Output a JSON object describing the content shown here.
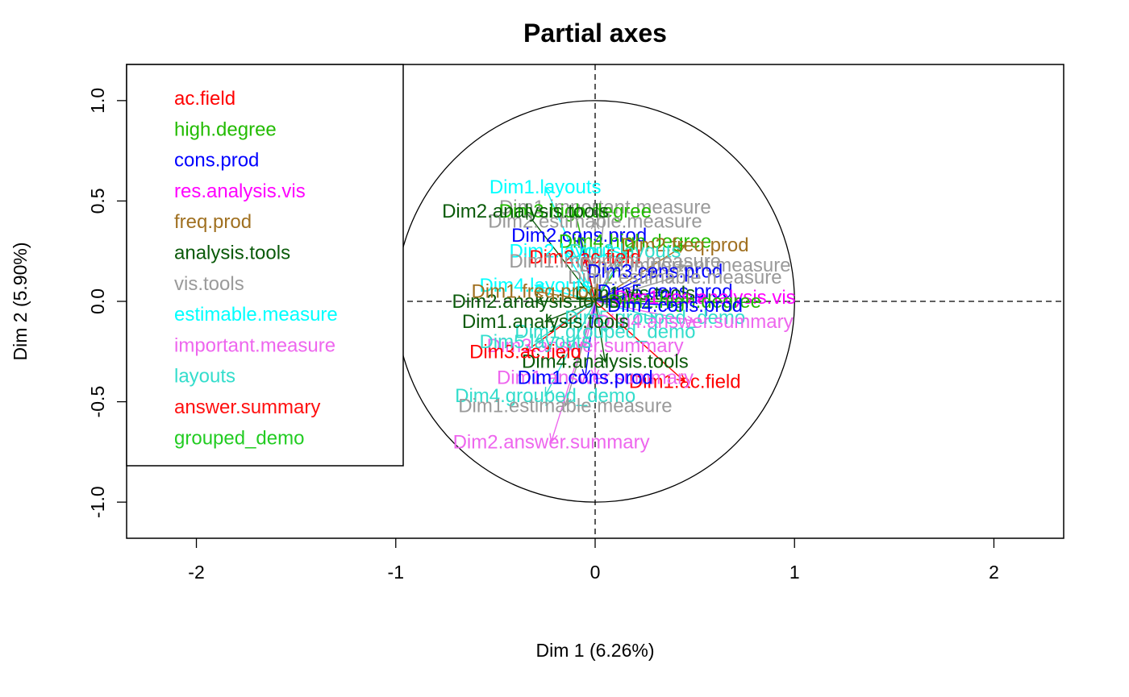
{
  "chart_data": {
    "type": "scatter",
    "title": "Partial axes",
    "xlabel": "Dim 1 (6.26%)",
    "ylabel": "Dim 2 (5.90%)",
    "xlim": [
      -2.35,
      2.35
    ],
    "ylim": [
      -1.18,
      1.18
    ],
    "x_ticks": [
      -2,
      -1,
      0,
      1,
      2
    ],
    "y_ticks": [
      -1.0,
      -0.5,
      0.0,
      0.5,
      1.0
    ],
    "x_tick_labels": [
      "-2",
      "-1",
      "0",
      "1",
      "2"
    ],
    "y_tick_labels": [
      "-1.0",
      "-0.5",
      "0.0",
      "0.5",
      "1.0"
    ],
    "grid": false,
    "unit_circle": true,
    "reference_lines": "dashed lines at x=0 and y=0",
    "legend_position": "top-left",
    "groups": [
      {
        "name": "ac.field",
        "color": "#FF0000"
      },
      {
        "name": "high.degree",
        "color": "#22BB00"
      },
      {
        "name": "cons.prod",
        "color": "#0000FF"
      },
      {
        "name": "res.analysis.vis",
        "color": "#FF00FF"
      },
      {
        "name": "freq.prod",
        "color": "#A07020"
      },
      {
        "name": "analysis.tools",
        "color": "#0A5A0A"
      },
      {
        "name": "vis.tools",
        "color": "#9A9A9A"
      },
      {
        "name": "estimable.measure",
        "color": "#00FFFF"
      },
      {
        "name": "important.measure",
        "color": "#EE66EE"
      },
      {
        "name": "layouts",
        "color": "#33DDCC"
      },
      {
        "name": "answer.summary",
        "color": "#FF1010"
      },
      {
        "name": "grouped_demo",
        "color": "#22CC22"
      }
    ],
    "points": [
      {
        "label": "Dim1.layouts",
        "group": "estimable.measure",
        "x": -0.25,
        "y": 0.57
      },
      {
        "label": "Dim1.important.measure",
        "group": "vis.tools",
        "x": 0.05,
        "y": 0.47
      },
      {
        "label": "Dim3.high.degree",
        "group": "high.degree",
        "x": -0.1,
        "y": 0.45
      },
      {
        "label": "Dim2.estimable.measure",
        "group": "vis.tools",
        "x": 0.0,
        "y": 0.4
      },
      {
        "label": "Dim2.cons.prod",
        "group": "cons.prod",
        "x": -0.08,
        "y": 0.33
      },
      {
        "label": "Dim4.high.degree",
        "group": "high.degree",
        "x": 0.2,
        "y": 0.3
      },
      {
        "label": "Dim2.freq.prod",
        "group": "freq.prod",
        "x": 0.45,
        "y": 0.28
      },
      {
        "label": "Dim3.layouts",
        "group": "layouts",
        "x": 0.15,
        "y": 0.25
      },
      {
        "label": "Dim2.layouts",
        "group": "estimable.measure",
        "x": -0.15,
        "y": 0.25
      },
      {
        "label": "Dim2.ac.field",
        "group": "ac.field",
        "x": -0.05,
        "y": 0.22
      },
      {
        "label": "Dim1.important.measure",
        "group": "vis.tools",
        "x": 0.1,
        "y": 0.2
      },
      {
        "label": "Dim3.important.measure",
        "group": "vis.tools",
        "x": 0.45,
        "y": 0.18
      },
      {
        "label": "Dim3.cons.prod",
        "group": "cons.prod",
        "x": 0.3,
        "y": 0.15
      },
      {
        "label": "Dim1.estimable.measure",
        "group": "vis.tools",
        "x": 0.4,
        "y": 0.12
      },
      {
        "label": "Dim5.cons.prod",
        "group": "cons.prod",
        "x": 0.35,
        "y": 0.05
      },
      {
        "label": "Dim1.vis.tools",
        "group": "analysis.tools",
        "x": 0.2,
        "y": 0.04
      },
      {
        "label": "Dim1.res.analysis.vis",
        "group": "res.analysis.vis",
        "x": 0.55,
        "y": 0.02
      },
      {
        "label": "Dim1.high.degree",
        "group": "high.degree",
        "x": 0.45,
        "y": 0.0
      },
      {
        "label": "Dim4.cons.prod",
        "group": "cons.prod",
        "x": 0.4,
        "y": -0.02
      },
      {
        "label": "Dim5.grouped_demo",
        "group": "layouts",
        "x": 0.3,
        "y": -0.08
      },
      {
        "label": "Dim4.answer.summary",
        "group": "important.measure",
        "x": 0.5,
        "y": -0.1
      },
      {
        "label": "Dim1.grouped_demo",
        "group": "layouts",
        "x": 0.05,
        "y": -0.15
      },
      {
        "label": "Dim3.answer.summary",
        "group": "important.measure",
        "x": -0.05,
        "y": -0.22
      },
      {
        "label": "Dim4.analysis.tools",
        "group": "analysis.tools",
        "x": 0.05,
        "y": -0.3
      },
      {
        "label": "Dim1.ac.field",
        "group": "ac.field",
        "x": 0.45,
        "y": -0.4
      },
      {
        "label": "Dim1.answer.summary",
        "group": "important.measure",
        "x": 0.0,
        "y": -0.38
      },
      {
        "label": "Dim1.cons.prod",
        "group": "cons.prod",
        "x": -0.05,
        "y": -0.38
      },
      {
        "label": "Dim4.grouped_demo",
        "group": "layouts",
        "x": -0.25,
        "y": -0.47
      },
      {
        "label": "Dim1.estimable.measure",
        "group": "vis.tools",
        "x": -0.15,
        "y": -0.52
      },
      {
        "label": "Dim2.answer.summary",
        "group": "important.measure",
        "x": -0.22,
        "y": -0.7
      },
      {
        "label": "Dim4.layouts",
        "group": "estimable.measure",
        "x": -0.3,
        "y": 0.08
      },
      {
        "label": "Dim3.ac.field",
        "group": "ac.field",
        "x": -0.35,
        "y": -0.25
      },
      {
        "label": "Dim5.layouts",
        "group": "layouts",
        "x": -0.3,
        "y": -0.2
      },
      {
        "label": "Dim2.analysis.tools",
        "group": "analysis.tools",
        "x": -0.3,
        "y": 0.0
      },
      {
        "label": "Dim1.analysis.tools",
        "group": "analysis.tools",
        "x": -0.25,
        "y": -0.1
      },
      {
        "label": "Dim2.analysis.tools",
        "group": "analysis.tools",
        "x": -0.35,
        "y": 0.45
      },
      {
        "label": "Dim1.freq.prod",
        "group": "freq.prod",
        "x": -0.3,
        "y": 0.05
      }
    ]
  }
}
